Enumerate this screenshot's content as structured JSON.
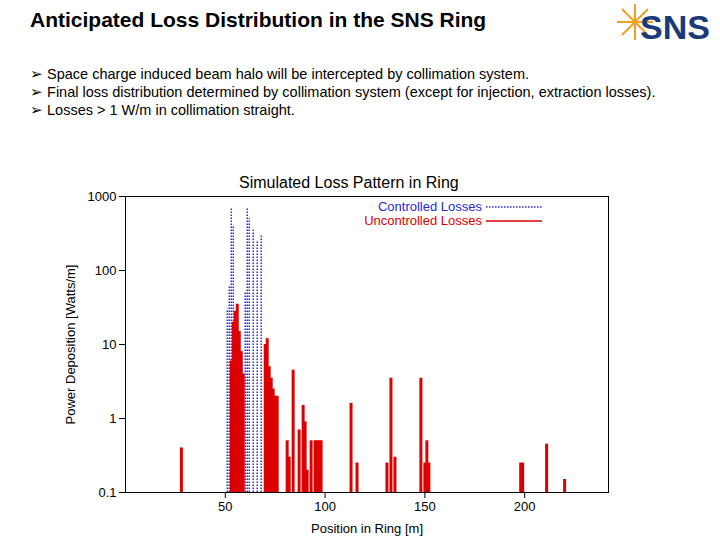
{
  "slide": {
    "title": "Anticipated Loss Distribution in the SNS Ring",
    "logo": "SNS",
    "bullets": [
      "Space charge induced beam halo will be intercepted by collimation system.",
      "Final loss distribution determined by collimation system (except for injection, extraction losses).",
      "Losses > 1 W/m in collimation straight."
    ]
  },
  "chart_data": {
    "type": "bar",
    "title": "Simulated Loss Pattern in Ring",
    "x_label": "Position in Ring [m]",
    "y_label": "Power Deposition [Watts/m]",
    "log": "y",
    "grid": false,
    "legend": "top-right",
    "xlim": [
      0,
      242
    ],
    "xticks": [
      50,
      100,
      150,
      200
    ],
    "ylim": [
      0.1,
      1000
    ],
    "yticks": [
      0.1,
      1,
      10,
      100,
      1000
    ],
    "series": [
      {
        "name": "Controlled Losses",
        "color": "#2a2ad0",
        "line_style": "dotted",
        "x": [
          51,
          52,
          53,
          54,
          60,
          61,
          62,
          64,
          66,
          68
        ],
        "values": [
          30,
          60,
          700,
          400,
          50,
          700,
          500,
          350,
          250,
          300
        ]
      },
      {
        "name": "Uncontrolled Losses",
        "color": "#dd0000",
        "line_style": "solid",
        "x": [
          28,
          53,
          54,
          55,
          56,
          57,
          58,
          59,
          70,
          71,
          72,
          73,
          74,
          75,
          76,
          81,
          82,
          84,
          87,
          89,
          90,
          91,
          93,
          95,
          96,
          97,
          98,
          113,
          116,
          131,
          133,
          135,
          148,
          150,
          151,
          152,
          198,
          199,
          211,
          220
        ],
        "values": [
          0.4,
          6,
          20,
          28,
          35,
          15,
          8,
          4,
          10,
          12,
          5,
          3.5,
          2.5,
          2,
          2,
          0.5,
          0.3,
          4.5,
          0.7,
          1.5,
          0.9,
          0.2,
          0.5,
          0.5,
          0.5,
          0.5,
          0.5,
          1.6,
          0.25,
          0.25,
          3.5,
          0.3,
          3.5,
          0.25,
          0.5,
          0.25,
          0.25,
          0.25,
          0.45,
          0.15
        ]
      }
    ]
  }
}
